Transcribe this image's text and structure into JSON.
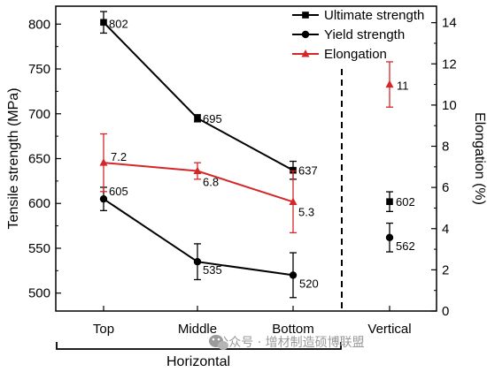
{
  "chart_data": {
    "type": "line",
    "categories": [
      "Top",
      "Middle",
      "Bottom",
      "Vertical"
    ],
    "group_label": "Horizontal",
    "left_axis": {
      "label": "Tensile strength (MPa)",
      "ylim": [
        480,
        820
      ],
      "ticks": [
        500,
        550,
        600,
        650,
        700,
        750,
        800
      ]
    },
    "right_axis": {
      "label": "Elongation (%)",
      "ylim": [
        0,
        14.8
      ],
      "ticks": [
        0,
        2,
        4,
        6,
        8,
        10,
        12,
        14
      ]
    },
    "series": [
      {
        "name": "Ultimate strength",
        "axis": "left",
        "marker": "square",
        "color": "#000000",
        "values": [
          802,
          695,
          637,
          602
        ],
        "errors": [
          12,
          4,
          10,
          11
        ],
        "labels": [
          "802",
          "695",
          "637",
          "602"
        ],
        "connected_through": 3
      },
      {
        "name": "Yield strength",
        "axis": "left",
        "marker": "circle",
        "color": "#000000",
        "values": [
          605,
          535,
          520,
          562
        ],
        "errors": [
          13,
          20,
          25,
          16
        ],
        "labels": [
          "605",
          "535",
          "520",
          "562"
        ],
        "connected_through": 3
      },
      {
        "name": "Elongation",
        "axis": "right",
        "marker": "triangle",
        "color": "#d62728",
        "values": [
          7.2,
          6.8,
          5.3,
          11
        ],
        "errors": [
          1.4,
          0.4,
          1.5,
          1.1
        ],
        "labels": [
          "7.2",
          "6.8",
          "5.3",
          "11"
        ],
        "connected_through": 3
      }
    ],
    "legend_position": "top-right",
    "grid": false,
    "divider_between": [
      "Bottom",
      "Vertical"
    ]
  },
  "watermark": {
    "icon": "wechat-icon",
    "text": "公众号 · 增材制造硕博联盟"
  }
}
